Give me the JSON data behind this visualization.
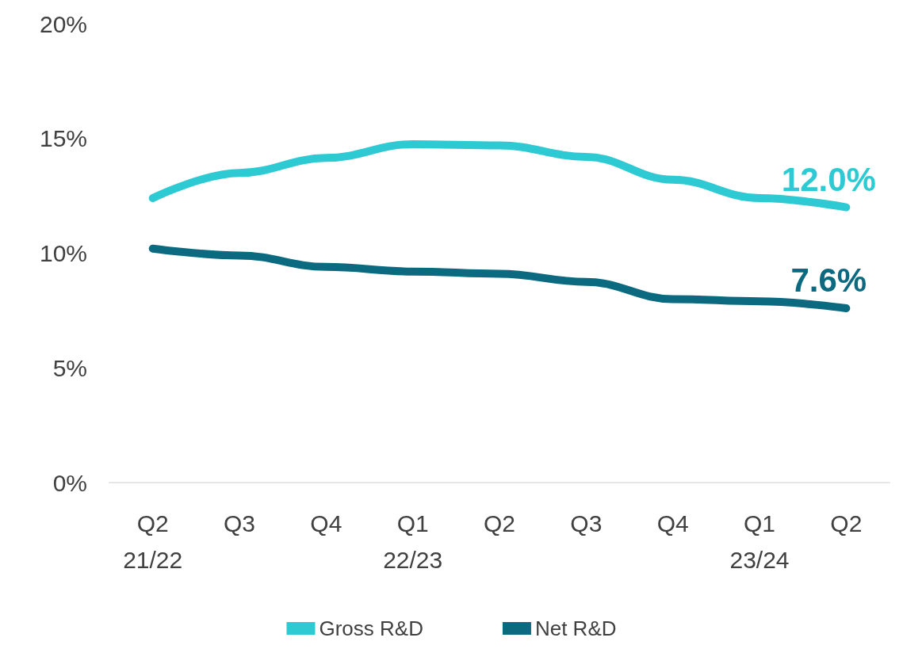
{
  "chart_data": {
    "type": "line",
    "categories": [
      "Q2\n21/22",
      "Q3",
      "Q4",
      "Q1\n22/23",
      "Q2",
      "Q3",
      "Q4",
      "Q1\n23/24",
      "Q2"
    ],
    "series": [
      {
        "name": "Gross R&D",
        "color": "#2ecad3",
        "values": [
          12.4,
          13.5,
          14.15,
          14.75,
          14.7,
          14.2,
          13.2,
          12.4,
          12.0
        ],
        "value_labels": [
          null,
          null,
          null,
          null,
          null,
          null,
          null,
          null,
          "12.0%"
        ]
      },
      {
        "name": "Net R&D",
        "color": "#0b6a80",
        "values": [
          10.2,
          9.9,
          9.4,
          9.2,
          9.1,
          8.75,
          8.0,
          7.9,
          7.6
        ],
        "value_labels": [
          null,
          null,
          null,
          null,
          null,
          null,
          null,
          null,
          "7.6%"
        ]
      }
    ],
    "ylim": [
      0,
      20
    ],
    "yticks": [
      {
        "value": 0,
        "label": "0%"
      },
      {
        "value": 5,
        "label": "5%"
      },
      {
        "value": 10,
        "label": "10%"
      },
      {
        "value": 15,
        "label": "15%"
      },
      {
        "value": 20,
        "label": "20%"
      }
    ],
    "grid": false,
    "legend": "bottom",
    "marker": "none",
    "line_style": "solid"
  }
}
